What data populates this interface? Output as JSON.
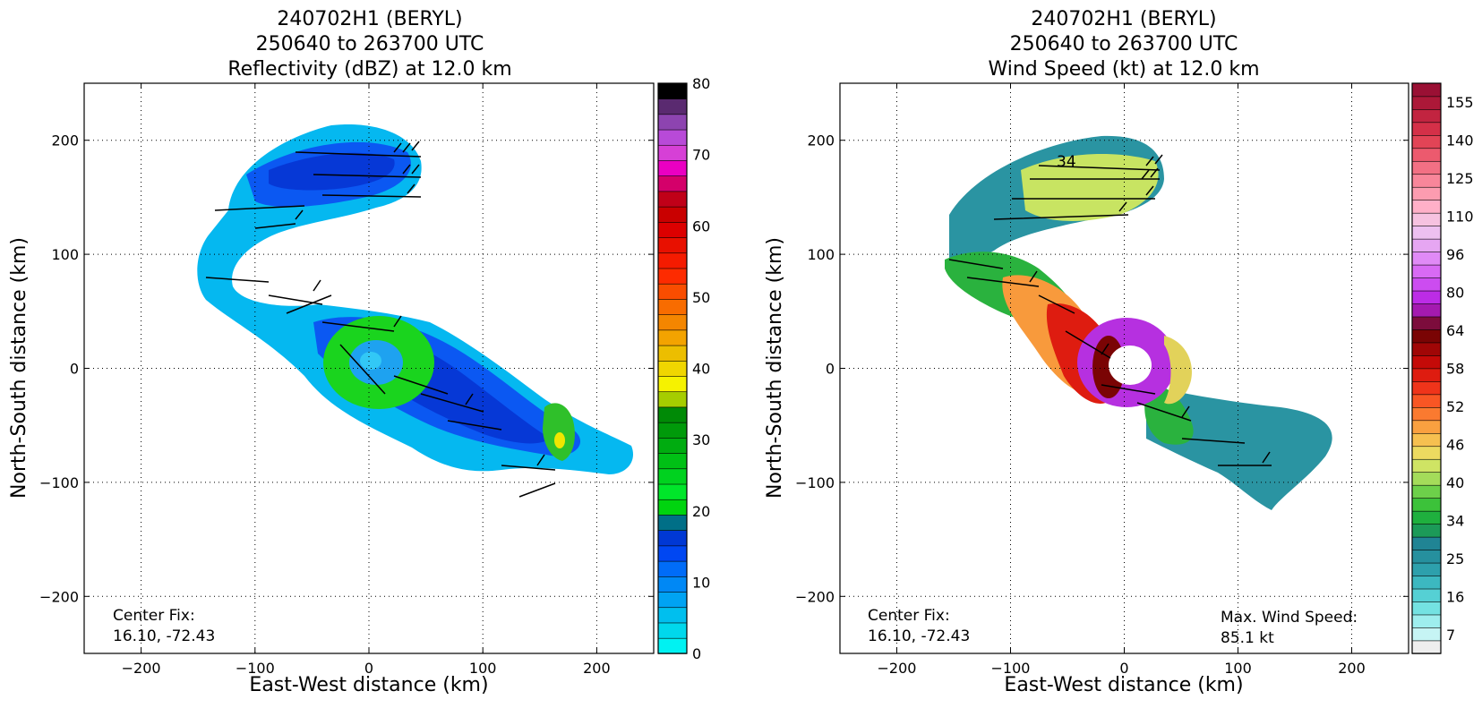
{
  "chart_data": [
    {
      "type": "heatmap",
      "title_lines": [
        "240702H1 (BERYL)",
        "250640 to 263700 UTC",
        "Reflectivity (dBZ) at 12.0 km"
      ],
      "xlabel": "East-West distance (km)",
      "ylabel": "North-South distance (km)",
      "xlim": [
        -250,
        250
      ],
      "ylim": [
        -250,
        250
      ],
      "xticks": [
        -200,
        -100,
        0,
        100,
        200
      ],
      "yticks": [
        -200,
        -100,
        0,
        100,
        200
      ],
      "grid": true,
      "colorbar": {
        "range": [
          0,
          80
        ],
        "ticks": [
          0,
          10,
          20,
          30,
          40,
          50,
          60,
          70,
          80
        ],
        "colors": [
          "#00f2f2",
          "#00d8ec",
          "#00bfee",
          "#00a3f3",
          "#0088f5",
          "#006cf8",
          "#0047f2",
          "#0038d4",
          "#006f87",
          "#00d40f",
          "#00e62a",
          "#00d21f",
          "#00c015",
          "#00ac10",
          "#009a0a",
          "#008a06",
          "#a6cd00",
          "#f6f200",
          "#f0d600",
          "#ecbe00",
          "#f3a300",
          "#f48600",
          "#f86c00",
          "#f94d00",
          "#fd2b00",
          "#f51b00",
          "#e81000",
          "#dc0000",
          "#c90000",
          "#c00018",
          "#d4006a",
          "#ea00c2",
          "#d640d6",
          "#b84ad8",
          "#8d44b0",
          "#5a2a70",
          "#000000"
        ]
      },
      "annotations": [
        "Center Fix:",
        "16.10, -72.43"
      ]
    },
    {
      "type": "heatmap",
      "title_lines": [
        "240702H1 (BERYL)",
        "250640 to 263700 UTC",
        "Wind Speed (kt) at 12.0 km"
      ],
      "xlabel": "East-West distance (km)",
      "ylabel": "North-South distance (km)",
      "xlim": [
        -250,
        250
      ],
      "ylim": [
        -250,
        250
      ],
      "xticks": [
        -200,
        -100,
        0,
        100,
        200
      ],
      "yticks": [
        -200,
        -100,
        0,
        100,
        200
      ],
      "grid": true,
      "contour_label": "34",
      "colorbar": {
        "ticks": [
          "7",
          "16",
          "25",
          "34",
          "40",
          "46",
          "52",
          "58",
          "64",
          "80",
          "96",
          "110",
          "125",
          "140",
          "155"
        ],
        "colors": [
          "#eeeeee",
          "#c6f4f4",
          "#9eeeee",
          "#74e2e2",
          "#55d0d4",
          "#3cb8c0",
          "#2da0ac",
          "#26909e",
          "#208494",
          "#1c9a58",
          "#1fb03e",
          "#3cc23a",
          "#6dd04a",
          "#a4dc5a",
          "#cfe464",
          "#ecda60",
          "#f6c050",
          "#f9a040",
          "#fa7a30",
          "#f85624",
          "#ef341a",
          "#de1c10",
          "#c40a08",
          "#a00606",
          "#7a0404",
          "#7c0c3c",
          "#a41ab0",
          "#bc2ce6",
          "#cc4cf0",
          "#d86af4",
          "#e08af6",
          "#e6a6f2",
          "#edc0f0",
          "#f6c2e0",
          "#ffb0c8",
          "#fc9cb0",
          "#f8869a",
          "#f27084",
          "#ec5a6e",
          "#e24456",
          "#d43048",
          "#c22440",
          "#ac1838",
          "#9a1034"
        ]
      },
      "annotations": [
        "Center Fix:",
        "16.10, -72.43",
        "Max. Wind Speed:",
        "85.1 kt"
      ]
    }
  ]
}
